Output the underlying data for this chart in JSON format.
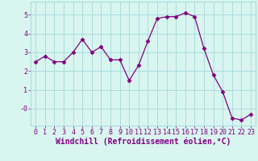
{
  "x": [
    0,
    1,
    2,
    3,
    4,
    5,
    6,
    7,
    8,
    9,
    10,
    11,
    12,
    13,
    14,
    15,
    16,
    17,
    18,
    19,
    20,
    21,
    22,
    23
  ],
  "y": [
    2.5,
    2.8,
    2.5,
    2.5,
    3.0,
    3.7,
    3.0,
    3.3,
    2.6,
    2.6,
    1.5,
    2.3,
    3.6,
    4.8,
    4.9,
    4.9,
    5.1,
    4.9,
    3.2,
    1.8,
    0.9,
    -0.5,
    -0.6,
    -0.3
  ],
  "line_color": "#800080",
  "marker": "D",
  "marker_size": 2.5,
  "bg_color": "#d8f5f0",
  "grid_color": "#aadddd",
  "xlabel": "Windchill (Refroidissement éolien,°C)",
  "xlabel_color": "#800080",
  "xlabel_fontsize": 7,
  "tick_color": "#800080",
  "tick_fontsize": 6,
  "ytick_vals": [
    0,
    1,
    2,
    3,
    4,
    5
  ],
  "ytick_labels": [
    "-0",
    "1",
    "2",
    "3",
    "4",
    "5"
  ],
  "ylim": [
    -0.9,
    5.7
  ],
  "xlim": [
    -0.5,
    23.5
  ]
}
